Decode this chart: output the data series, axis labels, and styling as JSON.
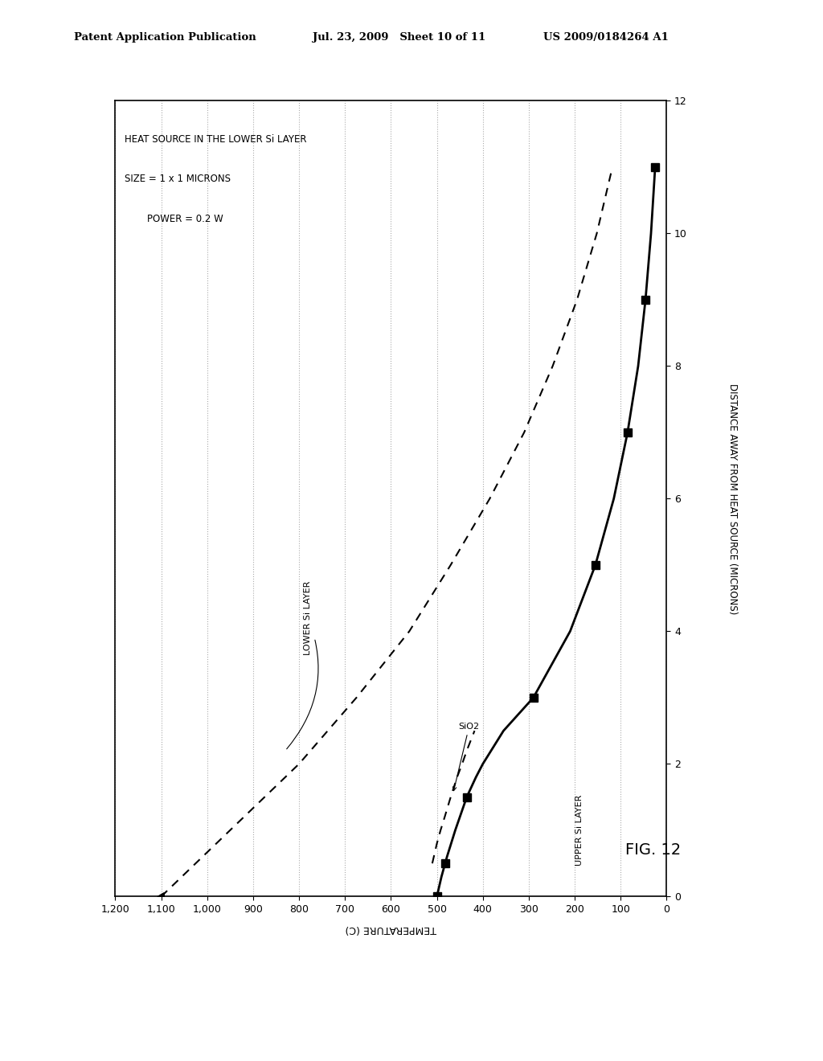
{
  "header_left": "Patent Application Publication",
  "header_mid": "Jul. 23, 2009   Sheet 10 of 11",
  "header_right": "US 2009/0184264 A1",
  "figure_label": "FIG. 12",
  "annotation_line1": "HEAT SOURCE IN THE LOWER Si LAYER",
  "annotation_line2": "SIZE = 1 x 1 MICRONS",
  "annotation_line3": "POWER = 0.2 W",
  "xlabel_dist": "DISTANCE AWAY FROM HEAT SOURCE (MICRONS)",
  "ylabel_temp": "TEMPERATURE (C)",
  "lower_si_label": "LOWER Si LAYER",
  "upper_si_label": "UPPER Si LAYER",
  "sio2_label": "SiO2",
  "temp_ticks": [
    0,
    100,
    200,
    300,
    400,
    500,
    600,
    700,
    800,
    900,
    1000,
    1100,
    1200
  ],
  "dist_ticks": [
    0,
    2,
    4,
    6,
    8,
    10,
    12
  ],
  "lower_si_dist": [
    0,
    1,
    2,
    3,
    4,
    5,
    6,
    7,
    8,
    9,
    10,
    11
  ],
  "lower_si_temp": [
    1100,
    950,
    800,
    675,
    560,
    470,
    385,
    310,
    248,
    195,
    152,
    118
  ],
  "upper_si_dist": [
    0,
    0.3,
    0.6,
    1.0,
    1.3,
    1.5,
    1.8,
    2.0,
    2.5,
    3.0,
    4.0,
    5.0,
    6.0,
    7.0,
    8.0,
    9.0,
    10.0,
    11.0
  ],
  "upper_si_temp": [
    500,
    490,
    478,
    460,
    445,
    435,
    415,
    400,
    355,
    290,
    210,
    155,
    115,
    85,
    62,
    46,
    34,
    25
  ],
  "sio2_dist": [
    0.5,
    0.8,
    1.0,
    1.2,
    1.5,
    1.8,
    2.0,
    2.2,
    2.5
  ],
  "sio2_temp": [
    510,
    500,
    492,
    483,
    470,
    456,
    445,
    435,
    418
  ],
  "marker_dist": [
    0.5,
    1.5,
    3.0,
    5.0,
    7.0,
    9.0,
    11.0
  ],
  "bg_color": "#ffffff",
  "line_color": "#000000",
  "grid_color": "#aaaaaa"
}
